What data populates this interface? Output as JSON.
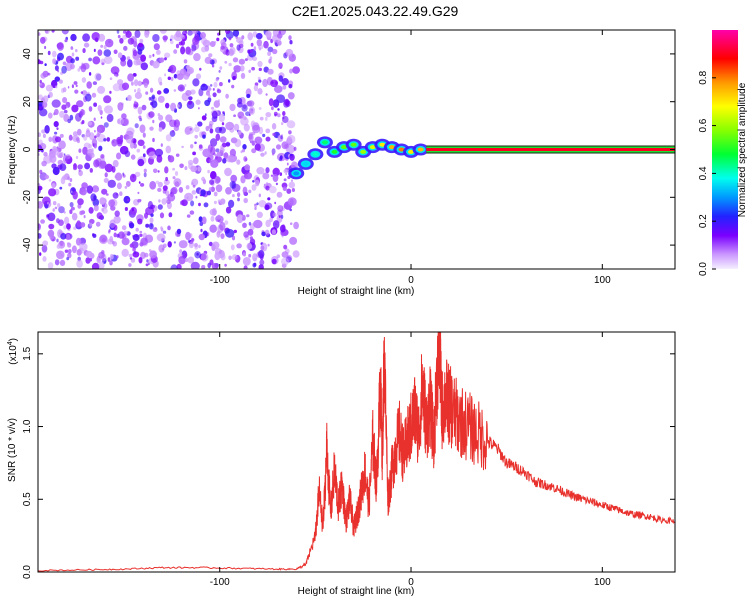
{
  "title": "C2E1.2025.043.22.49.G29",
  "chart_data": [
    {
      "type": "heatmap",
      "xlabel": "Height of straight line (km)",
      "ylabel": "Frequency (Hz)",
      "xlim": [
        -195,
        138
      ],
      "ylim": [
        -50,
        50
      ],
      "x_ticks": [
        -100,
        0,
        100
      ],
      "x_tick_labels": [
        "-100",
        "0",
        "100"
      ],
      "y_ticks": [
        -40,
        -20,
        0,
        20,
        40
      ],
      "y_tick_labels": [
        "-40",
        "-20",
        "0",
        "20",
        "40"
      ],
      "colorbar": {
        "label": "Normalized spectral amplitude",
        "range": [
          0,
          1
        ],
        "ticks": [
          0.0,
          0.2,
          0.4,
          0.6,
          0.8
        ],
        "tick_labels": [
          "0.0",
          "0.2",
          "0.4",
          "0.6",
          "0.8"
        ]
      },
      "noise_region_x": [
        -195,
        -60
      ],
      "noise_amplitude_range": [
        0.05,
        0.2
      ],
      "signal_trace": [
        {
          "x": -60,
          "y": -10,
          "amp": 0.3
        },
        {
          "x": -55,
          "y": -6,
          "amp": 0.35
        },
        {
          "x": -50,
          "y": -2,
          "amp": 0.4
        },
        {
          "x": -45,
          "y": 3,
          "amp": 0.45
        },
        {
          "x": -40,
          "y": -1,
          "amp": 0.5
        },
        {
          "x": -35,
          "y": 1,
          "amp": 0.55
        },
        {
          "x": -30,
          "y": 2,
          "amp": 0.55
        },
        {
          "x": -25,
          "y": -1,
          "amp": 0.6
        },
        {
          "x": -20,
          "y": 1,
          "amp": 0.65
        },
        {
          "x": -15,
          "y": 2,
          "amp": 0.7
        },
        {
          "x": -10,
          "y": 1,
          "amp": 0.75
        },
        {
          "x": -5,
          "y": 0,
          "amp": 0.8
        },
        {
          "x": 0,
          "y": -1,
          "amp": 0.7
        },
        {
          "x": 5,
          "y": 0,
          "amp": 0.75
        }
      ],
      "carrier_line": {
        "x_start": 8,
        "x_end": 138,
        "y": 0,
        "amp": 1.0
      }
    },
    {
      "type": "line",
      "xlabel": "Height of straight line (km)",
      "ylabel": "SNR (10 * v/v)",
      "y_scale_label": "(x10",
      "y_scale_exponent": "4",
      "xlim": [
        -195,
        138
      ],
      "ylim": [
        0,
        1.65
      ],
      "x_ticks": [
        -100,
        0,
        100
      ],
      "x_tick_labels": [
        "-100",
        "0",
        "100"
      ],
      "y_ticks": [
        0,
        0.5,
        1.0,
        1.5
      ],
      "y_tick_labels": [
        "0.0",
        "0.5",
        "1.0",
        "1.5"
      ],
      "color": "#e8312c",
      "series": [
        {
          "x": [
            -195,
            -170,
            -150,
            -130,
            -110,
            -90,
            -70,
            -60,
            -55,
            -50,
            -48,
            -46,
            -44,
            -42,
            -40,
            -38,
            -36,
            -34,
            -32,
            -30,
            -28,
            -26,
            -24,
            -22,
            -20,
            -18,
            -16,
            -15,
            -14,
            -12,
            -10,
            -8,
            -6,
            -4,
            -2,
            0,
            2,
            4,
            6,
            8,
            10,
            12,
            14,
            15,
            16,
            18,
            20,
            22,
            25,
            30,
            35,
            40,
            45,
            50,
            55,
            60,
            65,
            70,
            75,
            80,
            85,
            90,
            95,
            100,
            105,
            110,
            115,
            120,
            125,
            130,
            138
          ],
          "values": [
            0.01,
            0.015,
            0.02,
            0.03,
            0.03,
            0.025,
            0.02,
            0.02,
            0.05,
            0.25,
            0.55,
            0.3,
            0.85,
            0.4,
            0.7,
            0.45,
            0.6,
            0.35,
            0.5,
            0.3,
            0.4,
            0.55,
            0.7,
            0.45,
            0.9,
            0.6,
            1.3,
            0.8,
            1.5,
            0.5,
            0.7,
            0.85,
            0.95,
            0.8,
            0.9,
            1.0,
            1.1,
            0.95,
            1.3,
            1.0,
            1.15,
            0.9,
            1.45,
            1.62,
            1.1,
            1.2,
            1.15,
            1.1,
            1.05,
            1.0,
            0.95,
            0.9,
            0.85,
            0.75,
            0.72,
            0.68,
            0.62,
            0.6,
            0.58,
            0.55,
            0.52,
            0.5,
            0.48,
            0.46,
            0.44,
            0.42,
            0.4,
            0.39,
            0.38,
            0.36,
            0.35
          ]
        }
      ]
    }
  ]
}
